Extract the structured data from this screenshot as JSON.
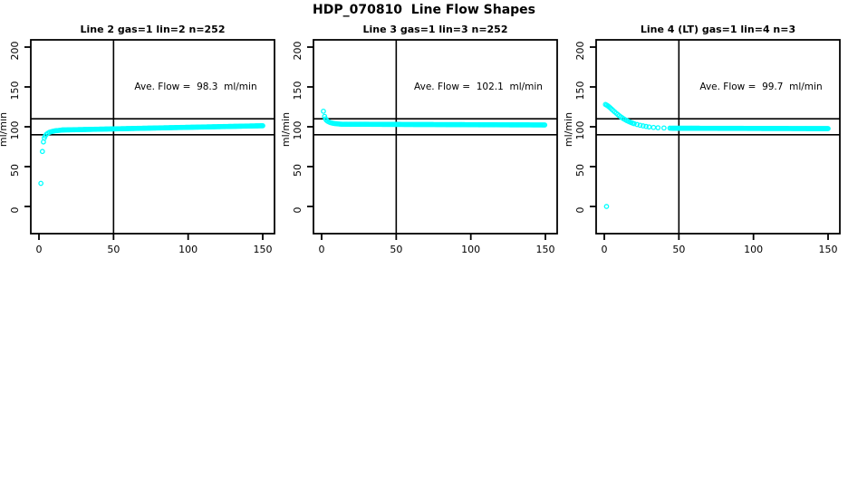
{
  "page_title": "HDP_070810  Line Flow Shapes",
  "colors": {
    "background": "#FFFFFF",
    "axis": "#000000",
    "points": "#00FFFF"
  },
  "axes": {
    "x_ticks": [
      0,
      50,
      100,
      150
    ],
    "y_ticks": [
      0,
      50,
      100,
      150,
      200
    ],
    "x_range": [
      0,
      150
    ],
    "y_range": [
      0,
      200
    ],
    "y_label": "ml/min",
    "grid": false
  },
  "chart_data": [
    {
      "type": "scatter",
      "title": "Line 2 gas=1 lin=2 n=252",
      "annotation": "Ave. Flow =  98.3  ml/min",
      "ave_flow_ml_min": 98.3,
      "n": 252,
      "ref_lines_h": [
        110,
        90
      ],
      "ref_line_v": 50,
      "transient_points": [
        [
          1.3,
          29
        ],
        [
          2.3,
          69
        ],
        [
          3,
          81
        ],
        [
          3.6,
          86
        ],
        [
          4.2,
          88.5
        ],
        [
          5,
          90.5
        ],
        [
          6,
          92
        ],
        [
          7,
          93
        ],
        [
          8,
          93.7
        ],
        [
          9,
          94.2
        ],
        [
          10,
          94.6
        ],
        [
          11,
          95
        ],
        [
          12,
          95.2
        ],
        [
          13,
          95.4
        ],
        [
          14,
          95.6
        ],
        [
          15,
          95.8
        ]
      ],
      "steady_band": {
        "x_start": 15.6,
        "x_end": 150,
        "y_start": 96,
        "y_end": 101.3,
        "x_step": 0.6
      },
      "outlier_points": []
    },
    {
      "type": "scatter",
      "title": "Line 3 gas=1 lin=3 n=252",
      "annotation": "Ave. Flow =  102.1  ml/min",
      "ave_flow_ml_min": 102.1,
      "n": 252,
      "ref_lines_h": [
        110,
        90
      ],
      "ref_line_v": 50,
      "transient_points": [
        [
          1.2,
          119.5
        ],
        [
          2,
          113
        ],
        [
          2.6,
          110
        ],
        [
          3.2,
          108.3
        ],
        [
          4,
          107
        ],
        [
          5,
          106
        ],
        [
          6,
          105.2
        ],
        [
          7,
          104.7
        ],
        [
          8,
          104.3
        ],
        [
          9,
          104
        ],
        [
          10,
          103.8
        ],
        [
          11,
          103.6
        ],
        [
          12,
          103.4
        ],
        [
          13,
          103.3
        ]
      ],
      "steady_band": {
        "x_start": 13.8,
        "x_end": 150,
        "y_start": 103.2,
        "y_end": 102.3,
        "x_step": 0.75
      },
      "outlier_points": []
    },
    {
      "type": "scatter",
      "title": "Line 4 (LT) gas=1 lin=4 n=3",
      "annotation": "Ave. Flow =  99.7  ml/min",
      "ave_flow_ml_min": 99.7,
      "n": 3,
      "ref_lines_h": [
        110,
        90
      ],
      "ref_line_v": 50,
      "transient_points": [
        [
          0.8,
          128
        ],
        [
          1.6,
          127.2
        ],
        [
          2.4,
          126.2
        ],
        [
          3.2,
          125
        ],
        [
          4,
          123.7
        ],
        [
          5,
          122
        ],
        [
          6,
          120.3
        ],
        [
          7,
          118.6
        ],
        [
          8,
          117
        ],
        [
          9,
          115.4
        ],
        [
          10,
          113.9
        ],
        [
          11,
          112.5
        ],
        [
          12,
          111.2
        ],
        [
          13,
          110
        ],
        [
          14,
          108.9
        ],
        [
          15,
          107.9
        ],
        [
          16,
          107
        ],
        [
          17,
          106.1
        ],
        [
          18,
          105.3
        ],
        [
          19,
          104.6
        ],
        [
          20,
          103.9
        ],
        [
          22,
          102.8
        ],
        [
          24,
          101.9
        ],
        [
          26,
          101.1
        ],
        [
          28,
          100.4
        ],
        [
          30,
          99.8
        ],
        [
          33,
          99.2
        ],
        [
          36,
          98.8
        ],
        [
          40,
          98.5
        ],
        [
          44,
          98.3
        ]
      ],
      "steady_band": {
        "x_start": 45,
        "x_end": 150,
        "y_start": 98.2,
        "y_end": 97.7,
        "x_step": 0.6
      },
      "outlier_points": [
        [
          1.5,
          0
        ]
      ]
    }
  ]
}
